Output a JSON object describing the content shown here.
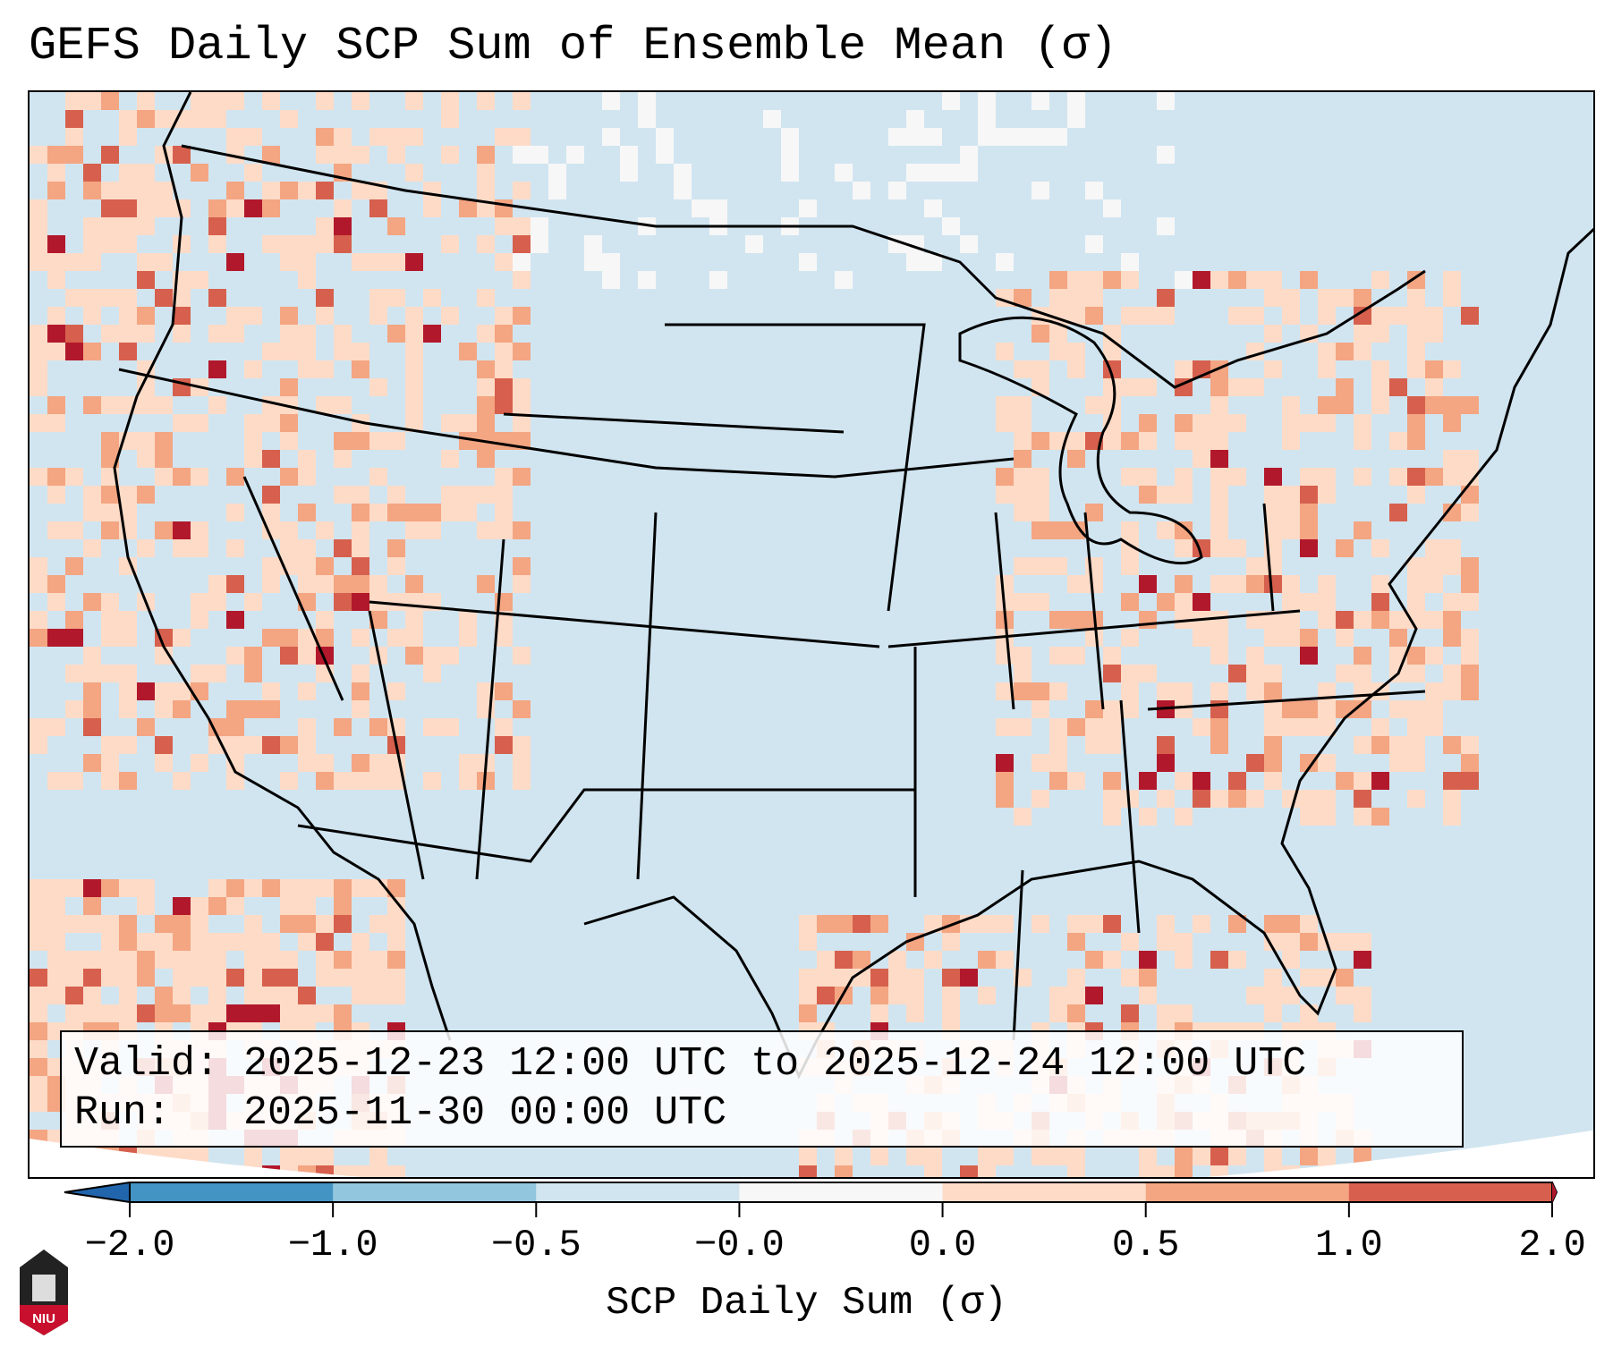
{
  "title": "GEFS Daily SCP Sum of Ensemble Mean (σ)",
  "info": {
    "valid_label": "Valid:",
    "valid_value": "2025-12-23 12:00 UTC to 2025-12-24 12:00 UTC",
    "run_label": "Run:",
    "run_value": "2025-11-30 00:00 UTC"
  },
  "colorbar": {
    "label": "SCP Daily Sum (σ)",
    "ticks": [
      "−2.0",
      "−1.0",
      "−0.5",
      "−0.0",
      "0.0",
      "0.5",
      "1.0",
      "2.0"
    ],
    "colors": [
      "#4393c3",
      "#92c5de",
      "#d1e5f0",
      "#f7f7f7",
      "#fddbc7",
      "#f4a582",
      "#d6604d"
    ],
    "extend_low_color": "#2166ac",
    "extend_high_color": "#b2182b"
  },
  "logo": {
    "text": "NIU"
  }
}
